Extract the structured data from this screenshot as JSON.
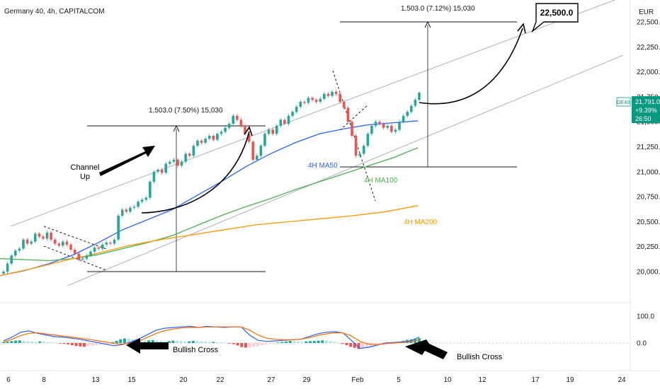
{
  "header": {
    "symbol_title": "Germany 40, 4h, CAPITALCOM",
    "currency": "EUR"
  },
  "price_tag": {
    "symbol": "DE40",
    "price": "21,791.0",
    "change": "+9.39%",
    "countdown": "26:50"
  },
  "annotations": {
    "measure_1": "1,503.0 (7.50%) 15,030",
    "measure_2": "1,503.0 (7.12%) 15,030",
    "target": "22,500.0",
    "channel_label_1": "Channel",
    "channel_label_2": "Up",
    "ma50_label": "4H MA50",
    "ma100_label": "4H MA100",
    "ma200_label": "4H MA200",
    "bullish_cross_1": "Bullish Cross",
    "bullish_cross_2": "Bullish Cross"
  },
  "colors": {
    "bull": "#26a69a",
    "bear": "#ef5350",
    "ma50": "#2962ff",
    "ma100": "#4caf50",
    "ma200": "#ff9800",
    "macd_line": "#2962ff",
    "signal_line": "#ff6d00",
    "price_tag_bg": "#089981"
  },
  "chart_data": {
    "type": "candlestick",
    "title": "Germany 40, 4h, CAPITALCOM",
    "price_axis": {
      "ticks": [
        "22,750.0",
        "22,500.0",
        "22,250.0",
        "22,000.0",
        "21,750.0",
        "21,500.0",
        "21,250.0",
        "21,000.0",
        "20,750.0",
        "20,500.0",
        "20,250.0",
        "20,000.0"
      ],
      "ylim": [
        19950,
        22900
      ]
    },
    "indicator_axis": {
      "ticks": [
        "100.0",
        "0.0"
      ]
    },
    "time_axis": {
      "ticks": [
        "6",
        "8",
        "13",
        "15",
        "20",
        "22",
        "27",
        "29",
        "Feb",
        "5",
        "10",
        "12",
        "17",
        "19",
        "24"
      ]
    },
    "closes": [
      20000,
      20080,
      20160,
      20210,
      20230,
      20320,
      20280,
      20300,
      20380,
      20350,
      20330,
      20390,
      20320,
      20280,
      20260,
      20300,
      20270,
      20220,
      20180,
      20120,
      20130,
      20160,
      20200,
      20240,
      20230,
      20270,
      20290,
      20280,
      20320,
      20560,
      20620,
      20600,
      20640,
      20650,
      20700,
      20720,
      20740,
      20900,
      21000,
      21020,
      20990,
      21080,
      21100,
      21120,
      21060,
      21100,
      21180,
      21160,
      21260,
      21310,
      21290,
      21330,
      21360,
      21320,
      21380,
      21400,
      21440,
      21480,
      21560,
      21520,
      21460,
      21380,
      21300,
      21120,
      21160,
      21260,
      21380,
      21420,
      21380,
      21460,
      21520,
      21480,
      21560,
      21600,
      21650,
      21700,
      21690,
      21740,
      21720,
      21700,
      21730,
      21780,
      21760,
      21800,
      21780,
      21700,
      21640,
      21500,
      21360,
      21160,
      21180,
      21260,
      21380,
      21460,
      21500,
      21480,
      21440,
      21460,
      21400,
      21420,
      21500,
      21560,
      21600,
      21660,
      21720,
      21791
    ],
    "moving_averages": [
      {
        "name": "4H MA50",
        "values": [
          19960,
          20010,
          20080,
          20170,
          20290,
          20420,
          20520,
          20620,
          20760,
          20900,
          21050,
          21180,
          21290,
          21380,
          21430,
          21470,
          21490,
          21510
        ]
      },
      {
        "name": "4H MA100",
        "values": [
          20130,
          20120,
          20110,
          20130,
          20170,
          20230,
          20290,
          20360,
          20460,
          20560,
          20650,
          20730,
          20820,
          20900,
          20980,
          21060,
          21140,
          21240
        ]
      },
      {
        "name": "4H MA200",
        "values": [
          19960,
          20030,
          20110,
          20180,
          20260,
          20320,
          20370,
          20420,
          20470,
          20500,
          20530,
          20560,
          20600,
          20660
        ]
      }
    ],
    "macd_histogram": [
      3,
      5,
      7,
      9,
      10,
      8,
      6,
      5,
      4,
      6,
      5,
      3,
      2,
      1,
      -1,
      -3,
      -5,
      -8,
      -11,
      -13,
      -14,
      -12,
      -10,
      -8,
      -6,
      -4,
      -2,
      3,
      8,
      14,
      17,
      16,
      15,
      13,
      11,
      9,
      10,
      11,
      8,
      7,
      6,
      7,
      9,
      8,
      7,
      6,
      6,
      8,
      7,
      6,
      5,
      4,
      4,
      3,
      2,
      1,
      -1,
      -4,
      -9,
      -15,
      -17,
      -16,
      -14,
      -12,
      -8,
      -5,
      -3,
      -1,
      2,
      4,
      6,
      8,
      7,
      5,
      4,
      6,
      7,
      8,
      9,
      10,
      9,
      7,
      4,
      1,
      -3,
      -8,
      -14,
      -18,
      -22,
      -20,
      -17,
      -14,
      -11,
      -9,
      -8,
      -6,
      -4,
      -2,
      4,
      8,
      12,
      14,
      16,
      18
    ],
    "macd_line": [
      8,
      22,
      40,
      45,
      36,
      30,
      24,
      22,
      18,
      14,
      8,
      2,
      -4,
      -10,
      -6,
      4,
      16,
      32,
      48,
      55,
      58,
      60,
      62,
      58,
      62,
      60,
      58,
      60,
      60,
      30,
      10,
      6,
      8,
      10,
      12,
      14,
      24,
      34,
      40,
      42,
      38,
      10,
      -20,
      -16,
      -8,
      0,
      2,
      4,
      8,
      22
    ],
    "signal_line": [
      4,
      14,
      28,
      36,
      38,
      34,
      30,
      26,
      22,
      18,
      14,
      9,
      4,
      -2,
      -4,
      0,
      8,
      22,
      36,
      46,
      52,
      56,
      58,
      58,
      60,
      60,
      60,
      60,
      60,
      48,
      30,
      18,
      14,
      12,
      12,
      14,
      20,
      28,
      34,
      38,
      38,
      26,
      6,
      -4,
      -6,
      -2,
      0,
      2,
      5,
      12
    ]
  }
}
